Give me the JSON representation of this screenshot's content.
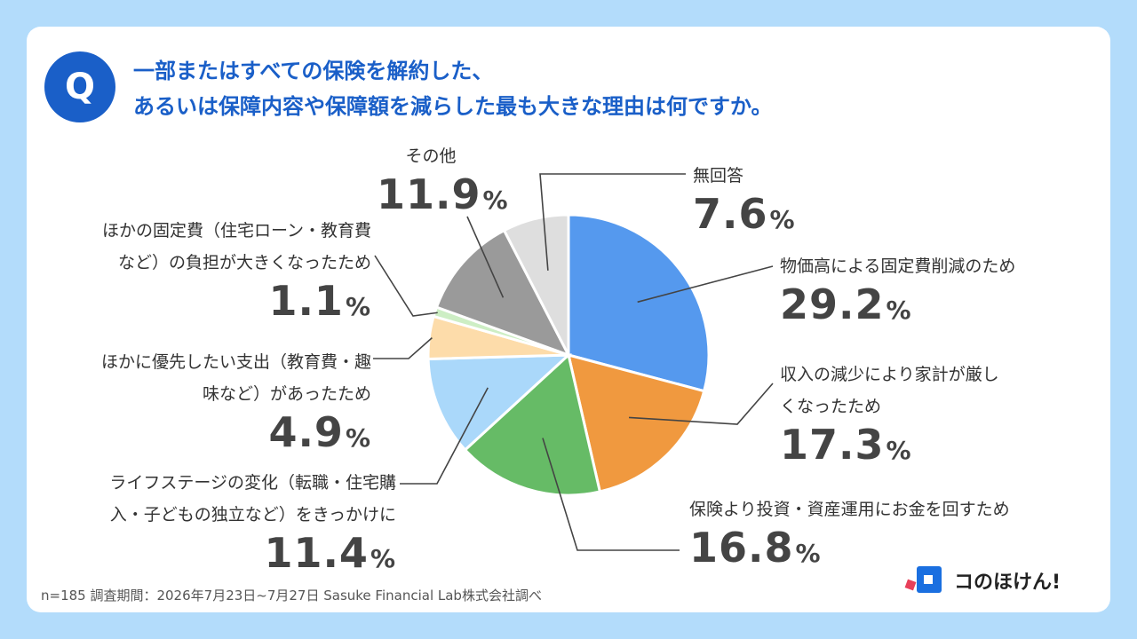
{
  "header": {
    "badge": "Q",
    "title_line1": "一部またはすべての保険を解約した、",
    "title_line2": "あるいは保障内容や保障額を減らした最も大きな理由は何ですか。"
  },
  "chart_data": {
    "type": "pie",
    "unit": "%",
    "slices": [
      {
        "label": "物価高による固定費削減のため",
        "value": 29.2,
        "display": "29.2",
        "color": "#5599ee"
      },
      {
        "label": "収入の減少により家計が厳しくなったため",
        "label_lines": [
          "収入の減少により家計が厳し",
          "くなったため"
        ],
        "value": 17.3,
        "display": "17.3",
        "color": "#f0993f"
      },
      {
        "label": "保険より投資・資産運用にお金を回すため",
        "value": 16.8,
        "display": "16.8",
        "color": "#66bb66"
      },
      {
        "label": "ライフステージの変化（転職・住宅購入・子どもの独立など）をきっかけに",
        "label_lines": [
          "ライフステージの変化（転職・住宅購",
          "入・子どもの独立など）をきっかけに"
        ],
        "value": 11.4,
        "display": "11.4",
        "color": "#aad8fa"
      },
      {
        "label": "ほかに優先したい支出（教育費・趣味など）があったため",
        "label_lines": [
          "ほかに優先したい支出（教育費・趣",
          "味など）があったため"
        ],
        "value": 4.9,
        "display": "4.9",
        "color": "#fddcaa"
      },
      {
        "label": "ほかの固定費（住宅ローン・教育費など）の負担が大きくなったため",
        "label_lines": [
          "ほかの固定費（住宅ローン・教育費",
          "など）の負担が大きくなったため"
        ],
        "value": 1.1,
        "display": "1.1",
        "color": "#cdeec4"
      },
      {
        "label": "その他",
        "value": 11.9,
        "display": "11.9",
        "color": "#9a9a9a"
      },
      {
        "label": "無回答",
        "value": 7.6,
        "display": "7.6",
        "color": "#dedede"
      }
    ]
  },
  "footer": {
    "note": "n=185 調査期間：2026年7月23日~7月27日 Sasuke Financial Lab株式会社調べ"
  },
  "logo": {
    "text": "コのほけん!",
    "colors": {
      "primary": "#1a6fe0",
      "accent": "#e8405a"
    }
  }
}
